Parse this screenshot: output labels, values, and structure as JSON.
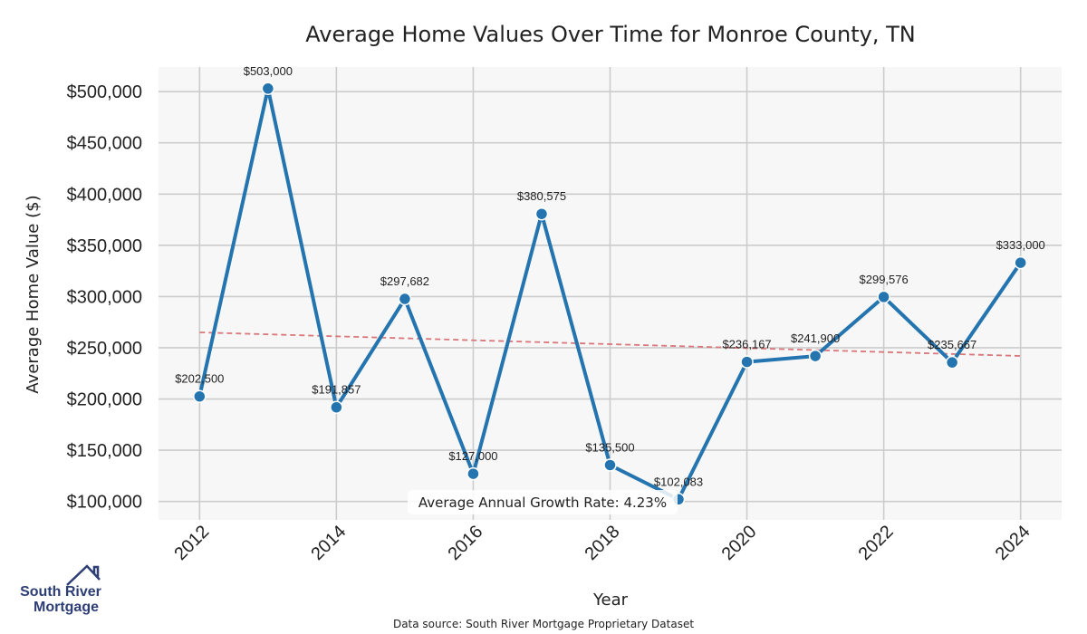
{
  "chart_data": {
    "type": "line",
    "title": "Average Home Values Over Time for Monroe County, TN",
    "xlabel": "Year",
    "ylabel": "Average Home Value ($)",
    "x": [
      2012,
      2013,
      2014,
      2015,
      2016,
      2017,
      2018,
      2019,
      2020,
      2021,
      2022,
      2023,
      2024
    ],
    "values": [
      202500,
      503000,
      191857,
      297682,
      127000,
      380575,
      135500,
      102083,
      236167,
      241900,
      299576,
      235667,
      333000
    ],
    "data_labels": [
      "$202,500",
      "$503,000",
      "$191,857",
      "$297,682",
      "$127,000",
      "$380,575",
      "$135,500",
      "$102,083",
      "$236,167",
      "$241,900",
      "$299,576",
      "$235,667",
      "$333,000"
    ],
    "xticks": [
      2012,
      2014,
      2016,
      2018,
      2020,
      2022,
      2024
    ],
    "xtick_labels": [
      "2012",
      "2014",
      "2016",
      "2018",
      "2020",
      "2022",
      "2024"
    ],
    "yticks": [
      100000,
      150000,
      200000,
      250000,
      300000,
      350000,
      400000,
      450000,
      500000
    ],
    "ytick_labels": [
      "$100,000",
      "$150,000",
      "$200,000",
      "$250,000",
      "$300,000",
      "$350,000",
      "$400,000",
      "$450,000",
      "$500,000"
    ],
    "xlim": [
      2011.4,
      2024.6
    ],
    "ylim": [
      82000,
      524000
    ],
    "trendline": {
      "x": [
        2012,
        2024
      ],
      "y": [
        265000,
        242000
      ],
      "color": "#d9777a",
      "style": "dashed"
    },
    "grid": true,
    "line_color": "#2474b0",
    "plot_background": "#f7f7f7",
    "grid_color": "#cccccc",
    "annotation": "Average Annual Growth Rate: 4.23%"
  },
  "footer": {
    "source": "Data source: South River Mortgage Proprietary Dataset"
  },
  "logo": {
    "line1": "South River",
    "line2": "Mortgage",
    "color": "#2d3e75"
  }
}
